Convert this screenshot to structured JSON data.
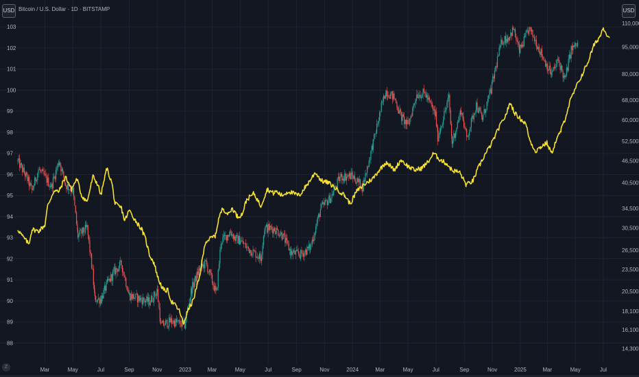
{
  "header": {
    "title": "Bitcoin / U.S. Dollar · 1D · BITSTAMP",
    "left_currency": "USD",
    "right_currency": "USD"
  },
  "footer": {
    "zoom_label": "Z"
  },
  "colors": {
    "background": "#131722",
    "grid": "#1f2330",
    "text": "#b2b5be",
    "candle_up": "#26a69a",
    "candle_down": "#ef5350",
    "index_line": "#f6e232"
  },
  "chart_data": {
    "type": "line",
    "title": "Bitcoin / U.S. Dollar · 1D · BITSTAMP",
    "x_axis": {
      "type": "date",
      "range": [
        "2022-01-01",
        "2025-07-31"
      ],
      "tick_labels": [
        "Mar",
        "May",
        "Jul",
        "Sep",
        "Nov",
        "2023",
        "Mar",
        "May",
        "Jul",
        "Sep",
        "Nov",
        "2024",
        "Mar",
        "May",
        "Jul",
        "Sep",
        "Nov",
        "2025",
        "Mar",
        "May",
        "Jul"
      ]
    },
    "y_axis_left": {
      "scale": "linear",
      "range": [
        87.3,
        103.3
      ],
      "tick_labels": [
        "88",
        "89",
        "90",
        "91",
        "92",
        "93",
        "94",
        "95",
        "96",
        "97",
        "98",
        "99",
        "100",
        "101",
        "102",
        "103"
      ]
    },
    "y_axis_right": {
      "scale": "log",
      "range": [
        13500,
        112000
      ],
      "tick_labels": [
        "14,300",
        "16,100",
        "18,100",
        "20,500",
        "23,500",
        "26,500",
        "30,500",
        "34,500",
        "40,500",
        "46,500",
        "52,500",
        "60,000",
        "68,000",
        "80,000",
        "95,000",
        "110,000"
      ]
    },
    "grid": true,
    "series": [
      {
        "type": "candlestick",
        "axis": "right",
        "points": [
          [
            "2022-01-01",
            46300
          ],
          [
            "2022-01-20",
            42000
          ],
          [
            "2022-02-01",
            38500
          ],
          [
            "2022-02-15",
            44000
          ],
          [
            "2022-03-01",
            42000
          ],
          [
            "2022-03-15",
            39500
          ],
          [
            "2022-04-01",
            46500
          ],
          [
            "2022-04-15",
            40000
          ],
          [
            "2022-05-01",
            38500
          ],
          [
            "2022-05-12",
            29000
          ],
          [
            "2022-06-01",
            30500
          ],
          [
            "2022-06-13",
            23000
          ],
          [
            "2022-06-18",
            19500
          ],
          [
            "2022-07-01",
            19500
          ],
          [
            "2022-07-15",
            21500
          ],
          [
            "2022-08-01",
            23300
          ],
          [
            "2022-08-15",
            24300
          ],
          [
            "2022-09-01",
            20000
          ],
          [
            "2022-09-15",
            19700
          ],
          [
            "2022-10-01",
            19400
          ],
          [
            "2022-10-15",
            19200
          ],
          [
            "2022-11-01",
            20500
          ],
          [
            "2022-11-09",
            16500
          ],
          [
            "2022-12-01",
            17000
          ],
          [
            "2022-12-31",
            16600
          ],
          [
            "2023-01-15",
            20800
          ],
          [
            "2023-02-01",
            23500
          ],
          [
            "2023-02-15",
            24500
          ],
          [
            "2023-03-10",
            20200
          ],
          [
            "2023-03-20",
            28000
          ],
          [
            "2023-04-10",
            29800
          ],
          [
            "2023-04-20",
            28500
          ],
          [
            "2023-05-01",
            28200
          ],
          [
            "2023-05-15",
            27000
          ],
          [
            "2023-06-15",
            25300
          ],
          [
            "2023-06-23",
            30500
          ],
          [
            "2023-07-15",
            30300
          ],
          [
            "2023-08-01",
            29200
          ],
          [
            "2023-08-20",
            26100
          ],
          [
            "2023-09-10",
            25800
          ],
          [
            "2023-10-01",
            27000
          ],
          [
            "2023-10-24",
            34500
          ],
          [
            "2023-11-15",
            37000
          ],
          [
            "2023-12-05",
            42000
          ],
          [
            "2023-12-31",
            42300
          ],
          [
            "2024-01-23",
            39500
          ],
          [
            "2024-02-15",
            52000
          ],
          [
            "2024-03-05",
            66000
          ],
          [
            "2024-03-14",
            72000
          ],
          [
            "2024-04-01",
            69000
          ],
          [
            "2024-04-17",
            61000
          ],
          [
            "2024-05-01",
            58000
          ],
          [
            "2024-05-20",
            70500
          ],
          [
            "2024-06-07",
            71000
          ],
          [
            "2024-06-30",
            62000
          ],
          [
            "2024-07-05",
            54000
          ],
          [
            "2024-07-29",
            69000
          ],
          [
            "2024-08-05",
            52000
          ],
          [
            "2024-08-25",
            64000
          ],
          [
            "2024-09-06",
            53500
          ],
          [
            "2024-09-27",
            66000
          ],
          [
            "2024-10-10",
            60500
          ],
          [
            "2024-10-29",
            72500
          ],
          [
            "2024-11-12",
            88000
          ],
          [
            "2024-11-22",
            99000
          ],
          [
            "2024-12-05",
            100500
          ],
          [
            "2024-12-17",
            106000
          ],
          [
            "2024-12-30",
            92500
          ],
          [
            "2025-01-20",
            106000
          ],
          [
            "2025-02-01",
            100000
          ],
          [
            "2025-02-25",
            86000
          ],
          [
            "2025-03-10",
            80000
          ],
          [
            "2025-03-25",
            87500
          ],
          [
            "2025-04-08",
            77000
          ],
          [
            "2025-04-22",
            93500
          ],
          [
            "2025-05-08",
            97000
          ]
        ]
      },
      {
        "type": "line",
        "axis": "left",
        "points": [
          [
            "2022-01-01",
            93.4
          ],
          [
            "2022-01-10",
            93.1
          ],
          [
            "2022-01-25",
            92.7
          ],
          [
            "2022-02-01",
            93.4
          ],
          [
            "2022-02-15",
            93.3
          ],
          [
            "2022-03-01",
            93.6
          ],
          [
            "2022-03-07",
            94.5
          ],
          [
            "2022-03-20",
            95.2
          ],
          [
            "2022-04-01",
            95.2
          ],
          [
            "2022-04-15",
            95.9
          ],
          [
            "2022-04-28",
            95.3
          ],
          [
            "2022-05-10",
            95.8
          ],
          [
            "2022-05-20",
            95.0
          ],
          [
            "2022-06-01",
            94.7
          ],
          [
            "2022-06-14",
            95.9
          ],
          [
            "2022-06-25",
            95.5
          ],
          [
            "2022-07-01",
            95.0
          ],
          [
            "2022-07-14",
            96.3
          ],
          [
            "2022-07-25",
            95.6
          ],
          [
            "2022-08-01",
            94.6
          ],
          [
            "2022-08-15",
            94.4
          ],
          [
            "2022-08-22",
            93.8
          ],
          [
            "2022-09-01",
            94.3
          ],
          [
            "2022-09-15",
            93.8
          ],
          [
            "2022-09-28",
            93.4
          ],
          [
            "2022-10-07",
            92.9
          ],
          [
            "2022-10-15",
            92.2
          ],
          [
            "2022-10-25",
            91.8
          ],
          [
            "2022-11-04",
            91.0
          ],
          [
            "2022-11-15",
            90.5
          ],
          [
            "2022-11-25",
            90.5
          ],
          [
            "2022-12-01",
            90.0
          ],
          [
            "2022-12-10",
            89.8
          ],
          [
            "2022-12-20",
            89.5
          ],
          [
            "2022-12-28",
            88.9
          ],
          [
            "2023-01-06",
            89.5
          ],
          [
            "2023-01-18",
            90.0
          ],
          [
            "2023-02-01",
            91.1
          ],
          [
            "2023-02-14",
            92.8
          ],
          [
            "2023-02-28",
            93.0
          ],
          [
            "2023-03-08",
            93.1
          ],
          [
            "2023-03-15",
            93.9
          ],
          [
            "2023-03-24",
            94.4
          ],
          [
            "2023-04-05",
            94.1
          ],
          [
            "2023-04-14",
            94.4
          ],
          [
            "2023-04-25",
            94.0
          ],
          [
            "2023-05-05",
            94.1
          ],
          [
            "2023-05-15",
            94.8
          ],
          [
            "2023-05-31",
            95.1
          ],
          [
            "2023-06-15",
            94.5
          ],
          [
            "2023-06-29",
            95.3
          ],
          [
            "2023-07-13",
            95.1
          ],
          [
            "2023-07-18",
            95.2
          ],
          [
            "2023-07-31",
            95.0
          ],
          [
            "2023-08-15",
            95.2
          ],
          [
            "2023-08-25",
            95.1
          ],
          [
            "2023-09-07",
            95.0
          ],
          [
            "2023-09-20",
            95.4
          ],
          [
            "2023-10-03",
            95.8
          ],
          [
            "2023-10-12",
            96.1
          ],
          [
            "2023-10-25",
            95.7
          ],
          [
            "2023-11-10",
            95.6
          ],
          [
            "2023-11-28",
            95.3
          ],
          [
            "2023-12-15",
            95.0
          ],
          [
            "2023-12-27",
            94.6
          ],
          [
            "2024-01-10",
            95.2
          ],
          [
            "2024-01-25",
            95.5
          ],
          [
            "2024-02-14",
            95.8
          ],
          [
            "2024-02-28",
            96.2
          ],
          [
            "2024-03-15",
            96.6
          ],
          [
            "2024-04-01",
            96.2
          ],
          [
            "2024-04-16",
            96.7
          ],
          [
            "2024-04-30",
            96.4
          ],
          [
            "2024-05-15",
            96.2
          ],
          [
            "2024-05-31",
            96.3
          ],
          [
            "2024-06-14",
            96.6
          ],
          [
            "2024-06-26",
            97.0
          ],
          [
            "2024-07-10",
            96.7
          ],
          [
            "2024-07-25",
            96.5
          ],
          [
            "2024-08-05",
            96.2
          ],
          [
            "2024-08-22",
            96.1
          ],
          [
            "2024-09-05",
            95.5
          ],
          [
            "2024-09-20",
            95.7
          ],
          [
            "2024-10-01",
            96.3
          ],
          [
            "2024-10-15",
            96.9
          ],
          [
            "2024-10-31",
            97.5
          ],
          [
            "2024-11-15",
            98.2
          ],
          [
            "2024-11-30",
            98.8
          ],
          [
            "2024-12-10",
            99.4
          ],
          [
            "2024-12-20",
            98.9
          ],
          [
            "2025-01-03",
            98.6
          ],
          [
            "2025-01-13",
            98.4
          ],
          [
            "2025-01-22",
            97.6
          ],
          [
            "2025-02-03",
            97.1
          ],
          [
            "2025-02-14",
            97.3
          ],
          [
            "2025-02-28",
            97.5
          ],
          [
            "2025-03-10",
            97.0
          ],
          [
            "2025-03-20",
            97.6
          ],
          [
            "2025-03-31",
            98.1
          ],
          [
            "2025-04-08",
            98.6
          ],
          [
            "2025-04-20",
            99.5
          ],
          [
            "2025-05-02",
            100.1
          ],
          [
            "2025-05-15",
            100.7
          ],
          [
            "2025-05-28",
            101.3
          ],
          [
            "2025-06-10",
            102.1
          ],
          [
            "2025-06-25",
            102.6
          ],
          [
            "2025-07-01",
            103.0
          ],
          [
            "2025-07-07",
            102.7
          ],
          [
            "2025-07-15",
            102.5
          ]
        ]
      }
    ]
  }
}
